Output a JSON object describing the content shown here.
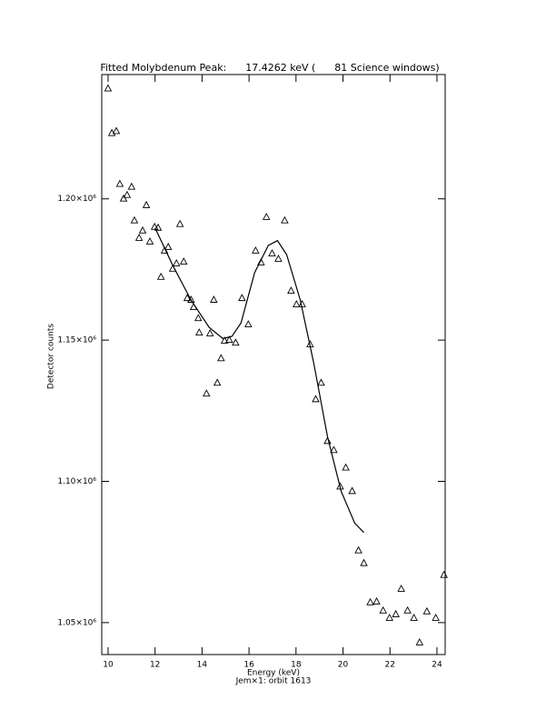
{
  "chart_data": {
    "type": "scatter",
    "title": "Fitted Molybdenum Peak:      17.4262 keV (      81 Science windows)",
    "xlabel": "Energy (keV)",
    "ylabel": "Detector counts",
    "subtitle": "Jem×1: orbit 1613",
    "xlim": [
      9.73,
      24.35
    ],
    "ylim": [
      1038700,
      1244000
    ],
    "xticks": [
      10,
      12,
      14,
      16,
      18,
      20,
      22,
      24
    ],
    "yticks": [
      {
        "value": 1050000,
        "label": "1.05×10⁶"
      },
      {
        "value": 1100000,
        "label": "1.10×10⁶"
      },
      {
        "value": 1150000,
        "label": "1.15×10⁶"
      },
      {
        "value": 1200000,
        "label": "1.20×10⁶"
      }
    ],
    "series": [
      {
        "mode": "markers",
        "color": "#000000",
        "x": [
          10.0,
          10.16,
          10.35,
          10.5,
          10.66,
          10.81,
          11.0,
          11.12,
          11.32,
          11.47,
          11.63,
          11.78,
          11.98,
          12.13,
          12.25,
          12.4,
          12.56,
          12.75,
          12.91,
          13.06,
          13.22,
          13.37,
          13.53,
          13.64,
          13.84,
          13.88,
          14.19,
          14.34,
          14.5,
          14.65,
          14.81,
          14.96,
          15.16,
          15.43,
          15.7,
          15.97,
          16.28,
          16.51,
          16.74,
          16.98,
          17.25,
          17.52,
          17.79,
          18.02,
          18.26,
          18.6,
          18.84,
          19.07,
          19.34,
          19.61,
          19.88,
          20.12,
          20.39,
          20.66,
          20.89,
          21.16,
          21.43,
          21.71,
          21.98,
          22.25,
          22.48,
          22.75,
          23.02,
          23.26,
          23.57,
          23.95,
          24.3
        ],
        "values": [
          1239000,
          1223200,
          1223900,
          1205200,
          1200000,
          1201300,
          1204200,
          1192300,
          1186100,
          1188700,
          1197700,
          1184800,
          1190000,
          1189700,
          1172300,
          1181600,
          1182900,
          1175200,
          1177100,
          1191000,
          1177700,
          1164800,
          1164200,
          1161600,
          1157700,
          1152600,
          1131000,
          1152300,
          1164200,
          1134800,
          1143500,
          1149700,
          1150000,
          1149000,
          1164800,
          1155500,
          1181600,
          1177400,
          1193500,
          1180600,
          1178700,
          1192300,
          1167400,
          1162600,
          1162600,
          1148400,
          1129000,
          1134800,
          1114200,
          1111000,
          1098100,
          1104800,
          1096500,
          1075500,
          1071000,
          1057100,
          1057400,
          1054200,
          1051600,
          1052900,
          1061900,
          1054200,
          1051600,
          1042900,
          1053900,
          1051600,
          1066800
        ]
      },
      {
        "mode": "line",
        "color": "#000000",
        "x": [
          12.0,
          12.75,
          13.53,
          14.3,
          14.88,
          15.27,
          15.66,
          16.24,
          16.82,
          17.21,
          17.6,
          18.18,
          18.76,
          19.34,
          19.92,
          20.5,
          20.89
        ],
        "values": [
          1189700,
          1176500,
          1164200,
          1154500,
          1150600,
          1151300,
          1156100,
          1173900,
          1183500,
          1185200,
          1180300,
          1164200,
          1141600,
          1115800,
          1096500,
          1085200,
          1081900
        ]
      }
    ]
  }
}
